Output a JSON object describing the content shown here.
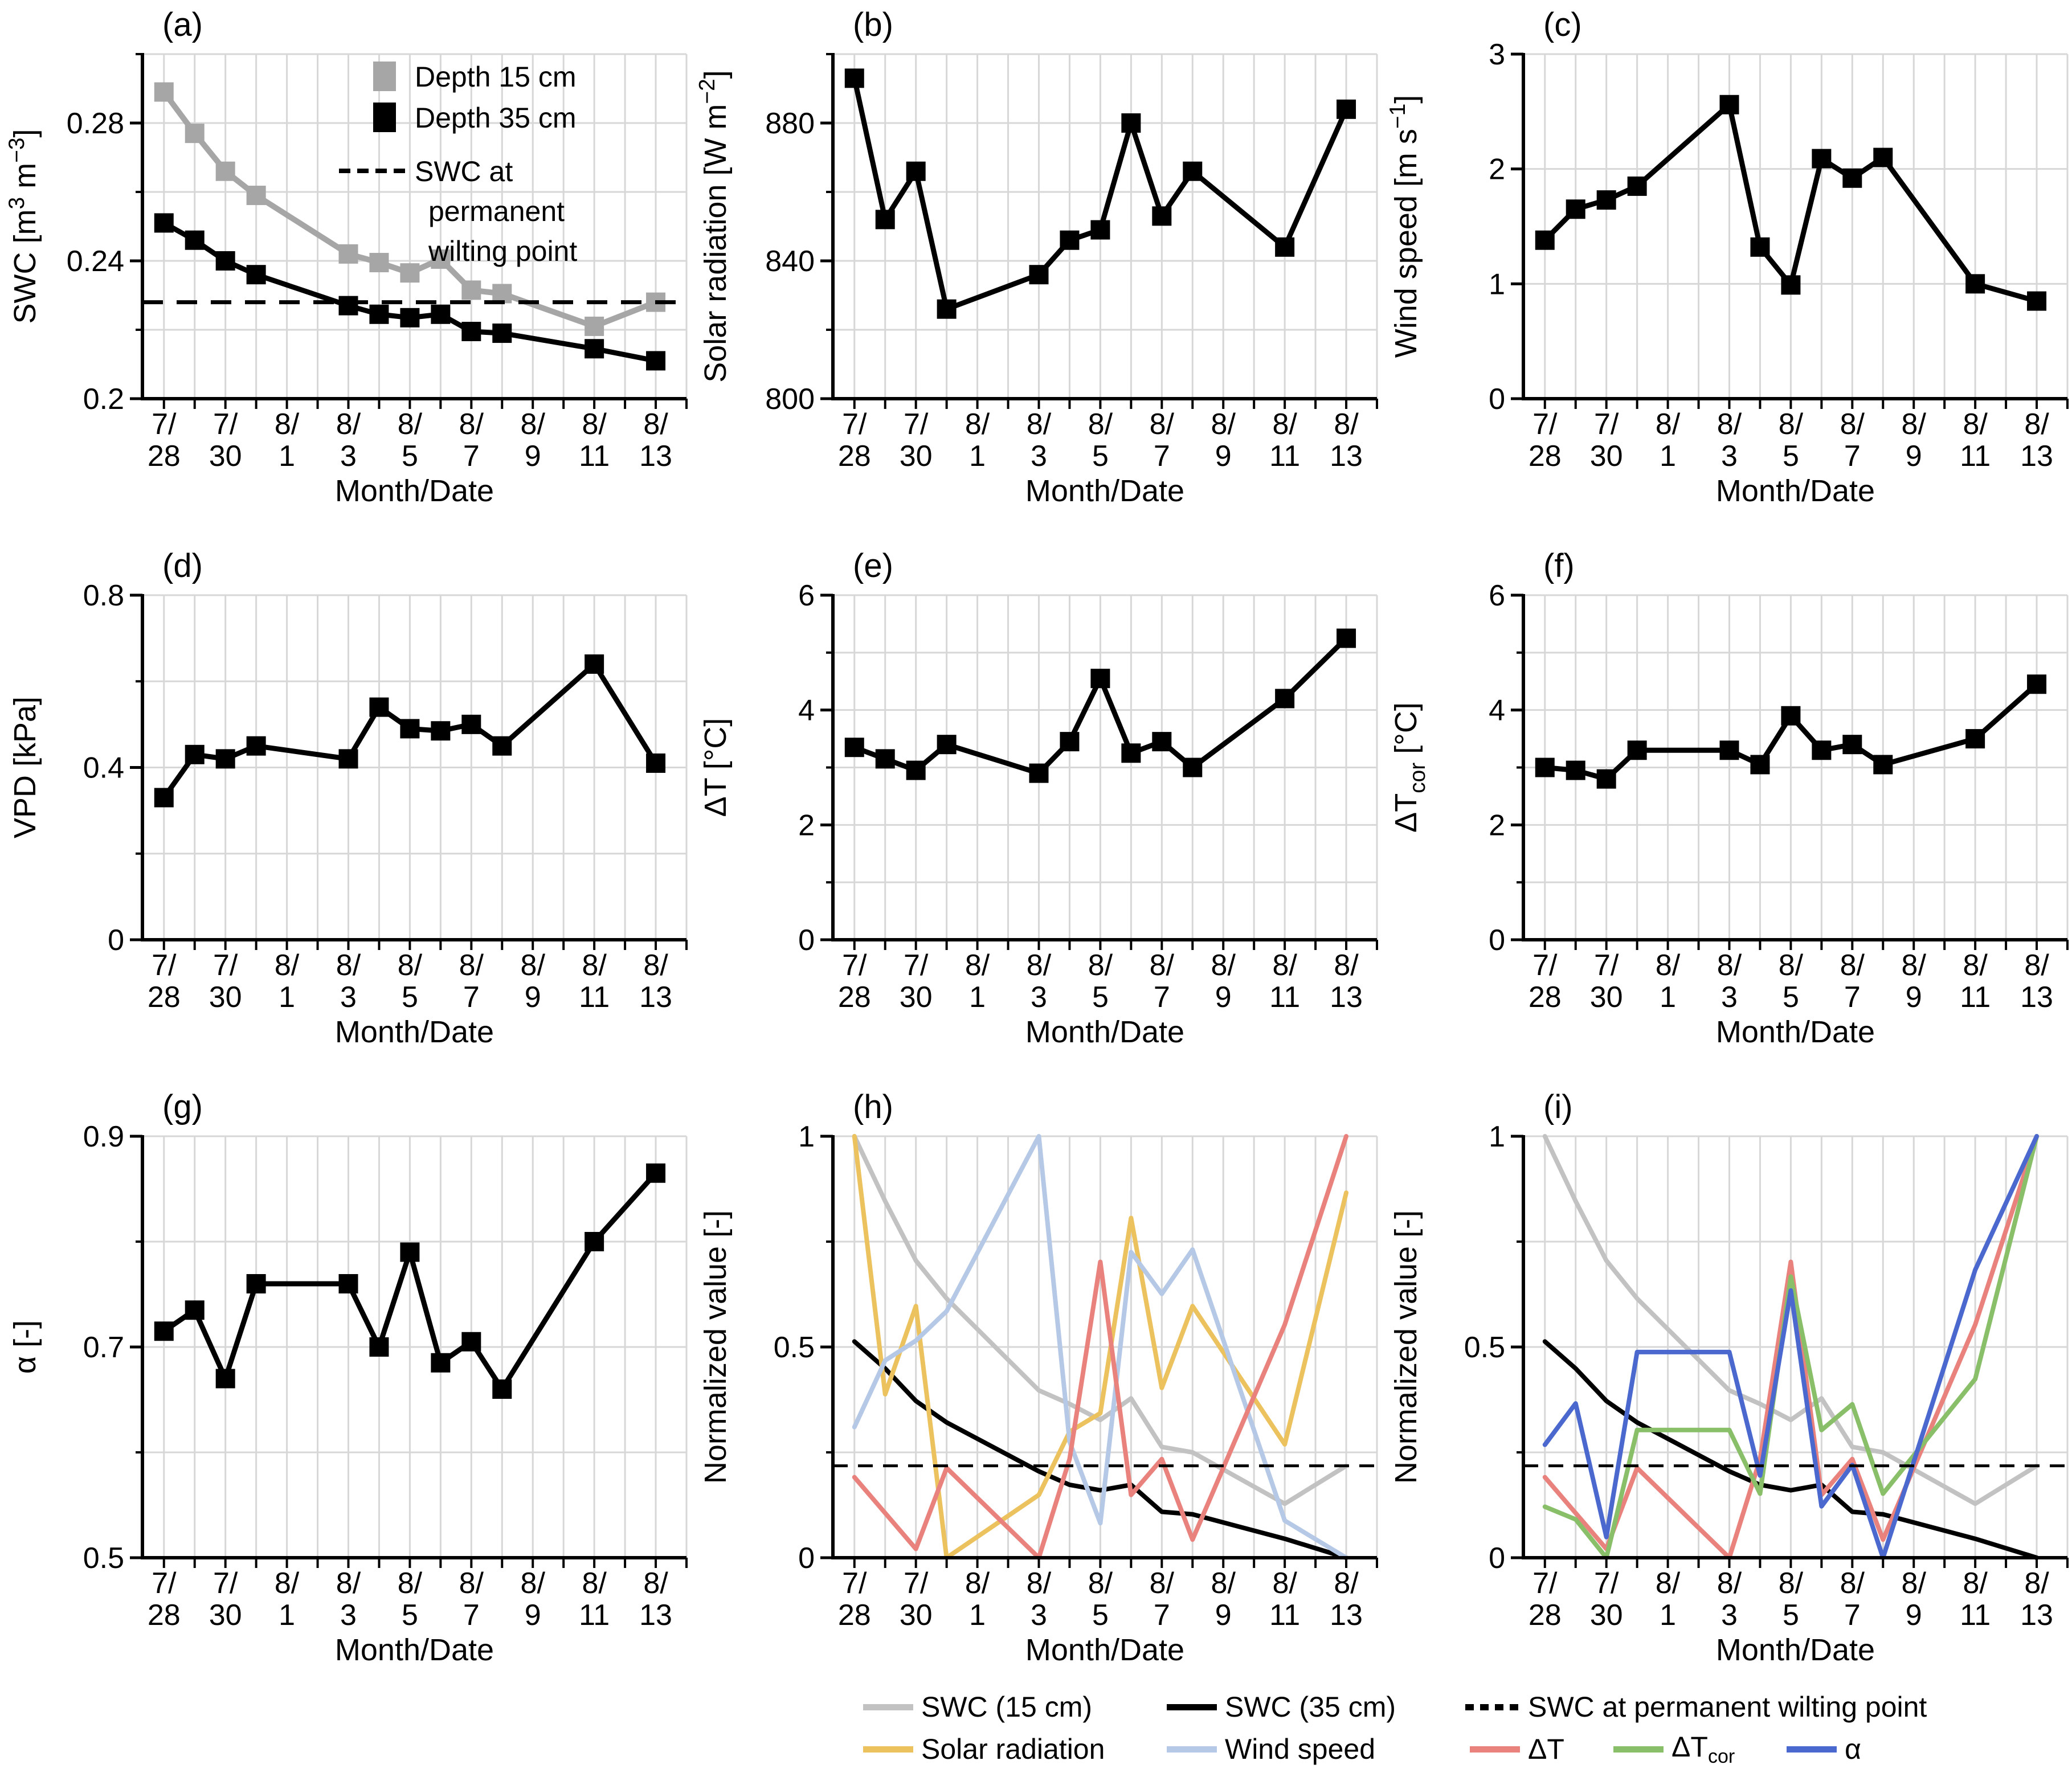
{
  "colors": {
    "swc15_marker": "#a6a6a6",
    "swc15_line": "#c2c2c2",
    "swc35": "#000000",
    "solar": "#ecc25e",
    "wind": "#b5c8e6",
    "dt": "#e9827d",
    "dtcor": "#8abf6a",
    "alpha": "#4a68ce",
    "grid": "#d7d7d7",
    "axis": "#000000"
  },
  "chart_data": {
    "type": "line",
    "x_title": "Month/Date",
    "dates": [
      "7/28",
      "7/29",
      "7/30",
      "7/31",
      "8/3",
      "8/4",
      "8/5",
      "8/6",
      "8/7",
      "8/8",
      "8/11",
      "8/13"
    ],
    "day_positions": [
      0,
      1,
      2,
      3,
      6,
      7,
      8,
      9,
      10,
      11,
      14,
      16
    ],
    "xtick_days": [
      0,
      2,
      4,
      6,
      8,
      10,
      12,
      14,
      16
    ],
    "xtick_top": [
      "7/",
      "7/",
      "8/",
      "8/",
      "8/",
      "8/",
      "8/",
      "8/",
      "8/"
    ],
    "xtick_bottom": [
      "28",
      "30",
      "1",
      "3",
      "5",
      "7",
      "9",
      "11",
      "13"
    ],
    "xlim": [
      -0.7,
      17
    ],
    "grid_day_step": 1,
    "panels": [
      {
        "letter": "(a)",
        "ylabel": [
          {
            "t": "SWC [m"
          },
          {
            "t": "3",
            "sup": 1
          },
          {
            "t": " m"
          },
          {
            "t": "−3",
            "sup": 1
          },
          {
            "t": "]"
          }
        ],
        "ylim": [
          0.2,
          0.3
        ],
        "yticks": [
          {
            "v": 0.2,
            "l": "0.2"
          },
          {
            "v": 0.24,
            "l": "0.24"
          },
          {
            "v": 0.28,
            "l": "0.28"
          }
        ],
        "ygrid": [
          0.22,
          0.24,
          0.26,
          0.28,
          0.3
        ],
        "hline": 0.228,
        "hline_style": "big",
        "has_legend": true,
        "series": [
          {
            "name": "Depth 15 cm",
            "color": "swc15_marker",
            "marker": true,
            "lw": 10,
            "values": [
              0.289,
              0.277,
              0.266,
              0.259,
              0.242,
              0.2395,
              0.2365,
              0.2405,
              0.2315,
              0.2305,
              0.221,
              0.228
            ]
          },
          {
            "name": "Depth 35 cm",
            "color": "swc35",
            "marker": true,
            "lw": 9,
            "values": [
              0.251,
              0.246,
              0.24,
              0.236,
              0.227,
              0.2245,
              0.2235,
              0.2245,
              0.2195,
              0.219,
              0.2145,
              0.211
            ]
          }
        ]
      },
      {
        "letter": "(b)",
        "ylabel": [
          {
            "t": "Solar radiation [W m"
          },
          {
            "t": "−2",
            "sup": 1
          },
          {
            "t": "]"
          }
        ],
        "ylim": [
          800,
          900
        ],
        "yticks": [
          {
            "v": 800,
            "l": "800"
          },
          {
            "v": 840,
            "l": "840"
          },
          {
            "v": 880,
            "l": "880"
          }
        ],
        "ygrid": [
          820,
          840,
          860,
          880,
          900
        ],
        "series": [
          {
            "name": "Solar radiation",
            "color": "swc35",
            "marker": true,
            "lw": 9,
            "values": [
              893,
              852,
              866,
              826,
              836,
              846,
              849,
              880,
              853,
              866,
              844,
              884
            ]
          }
        ]
      },
      {
        "letter": "(c)",
        "ylabel": [
          {
            "t": "Wind speed [m s"
          },
          {
            "t": "−1",
            "sup": 1
          },
          {
            "t": "]"
          }
        ],
        "ylim": [
          0,
          3
        ],
        "yticks": [
          {
            "v": 0,
            "l": "0"
          },
          {
            "v": 1,
            "l": "1"
          },
          {
            "v": 2,
            "l": "2"
          },
          {
            "v": 3,
            "l": "3"
          }
        ],
        "ygrid": [
          1,
          2,
          3
        ],
        "series": [
          {
            "name": "Wind speed",
            "color": "swc35",
            "marker": true,
            "lw": 9,
            "values": [
              1.38,
              1.65,
              1.73,
              1.85,
              2.56,
              1.32,
              0.99,
              2.09,
              1.92,
              2.1,
              1.0,
              0.85
            ]
          }
        ]
      },
      {
        "letter": "(d)",
        "ylabel": [
          {
            "t": "VPD [kPa]"
          }
        ],
        "ylim": [
          0,
          0.8
        ],
        "yticks": [
          {
            "v": 0,
            "l": "0"
          },
          {
            "v": 0.4,
            "l": "0.4"
          },
          {
            "v": 0.8,
            "l": "0.8"
          }
        ],
        "ygrid": [
          0.2,
          0.4,
          0.6,
          0.8
        ],
        "series": [
          {
            "name": "VPD",
            "color": "swc35",
            "marker": true,
            "lw": 9,
            "values": [
              0.33,
              0.43,
              0.42,
              0.45,
              0.42,
              0.54,
              0.49,
              0.485,
              0.5,
              0.45,
              0.64,
              0.41
            ]
          }
        ]
      },
      {
        "letter": "(e)",
        "ylabel": [
          {
            "t": "ΔT [°C]"
          }
        ],
        "ylim": [
          0,
          6
        ],
        "yticks": [
          {
            "v": 0,
            "l": "0"
          },
          {
            "v": 2,
            "l": "2"
          },
          {
            "v": 4,
            "l": "4"
          },
          {
            "v": 6,
            "l": "6"
          }
        ],
        "ygrid": [
          1,
          2,
          3,
          4,
          5,
          6
        ],
        "series": [
          {
            "name": "dT",
            "color": "swc35",
            "marker": true,
            "lw": 9,
            "values": [
              3.35,
              3.15,
              2.95,
              3.4,
              2.9,
              3.45,
              4.55,
              3.25,
              3.45,
              3.0,
              4.2,
              5.25
            ]
          }
        ]
      },
      {
        "letter": "(f)",
        "ylabel": [
          {
            "t": "ΔT"
          },
          {
            "t": "cor",
            "sub": 1
          },
          {
            "t": " [°C]"
          }
        ],
        "ylim": [
          0,
          6
        ],
        "yticks": [
          {
            "v": 0,
            "l": "0"
          },
          {
            "v": 2,
            "l": "2"
          },
          {
            "v": 4,
            "l": "4"
          },
          {
            "v": 6,
            "l": "6"
          }
        ],
        "ygrid": [
          1,
          2,
          3,
          4,
          5,
          6
        ],
        "series": [
          {
            "name": "dTcor",
            "color": "swc35",
            "marker": true,
            "lw": 9,
            "values": [
              3.0,
              2.95,
              2.8,
              3.3,
              3.3,
              3.05,
              3.9,
              3.3,
              3.4,
              3.05,
              3.5,
              4.45
            ]
          }
        ]
      },
      {
        "letter": "(g)",
        "ylabel": [
          {
            "t": "α [-]"
          }
        ],
        "ylim": [
          0.5,
          0.9
        ],
        "yticks": [
          {
            "v": 0.5,
            "l": "0.5"
          },
          {
            "v": 0.7,
            "l": "0.7"
          },
          {
            "v": 0.9,
            "l": "0.9"
          }
        ],
        "ygrid": [
          0.6,
          0.7,
          0.8,
          0.9
        ],
        "series": [
          {
            "name": "alpha",
            "color": "swc35",
            "marker": true,
            "lw": 9,
            "values": [
              0.715,
              0.735,
              0.67,
              0.76,
              0.76,
              0.7,
              0.79,
              0.685,
              0.705,
              0.66,
              0.8,
              0.865
            ]
          }
        ]
      },
      {
        "letter": "(h)",
        "ylabel": [
          {
            "t": "Normalized value [-]"
          }
        ],
        "ylim": [
          0,
          1
        ],
        "yticks": [
          {
            "v": 0,
            "l": "0"
          },
          {
            "v": 0.5,
            "l": "0.5"
          },
          {
            "v": 1,
            "l": "1"
          }
        ],
        "ygrid": [
          0.25,
          0.5,
          0.75,
          1
        ],
        "hline": 0.218,
        "hline_style": "small",
        "series": [
          {
            "name": "SWC (15 cm)",
            "color": "swc15_line",
            "lw": 8,
            "values": [
              1.0,
              0.846,
              0.705,
              0.615,
              0.397,
              0.365,
              0.327,
              0.378,
              0.263,
              0.25,
              0.128,
              0.218
            ]
          },
          {
            "name": "SWC (35 cm)",
            "color": "swc35",
            "lw": 8,
            "values": [
              0.513,
              0.449,
              0.372,
              0.321,
              0.205,
              0.173,
              0.16,
              0.173,
              0.109,
              0.103,
              0.045,
              0.0
            ]
          },
          {
            "name": "Solar radiation",
            "color": "solar",
            "lw": 8,
            "values": [
              1.0,
              0.388,
              0.597,
              0.0,
              0.149,
              0.299,
              0.343,
              0.806,
              0.403,
              0.597,
              0.269,
              0.866
            ]
          },
          {
            "name": "Wind speed",
            "color": "wind",
            "lw": 8,
            "values": [
              0.31,
              0.468,
              0.515,
              0.585,
              1.0,
              0.275,
              0.082,
              0.725,
              0.626,
              0.731,
              0.088,
              0.0
            ]
          },
          {
            "name": "dT",
            "color": "dt",
            "lw": 8,
            "values": [
              0.191,
              0.106,
              0.021,
              0.213,
              0.0,
              0.234,
              0.702,
              0.149,
              0.234,
              0.043,
              0.553,
              1.0
            ]
          }
        ]
      },
      {
        "letter": "(i)",
        "ylabel": [
          {
            "t": "Normalized value [-]"
          }
        ],
        "ylim": [
          0,
          1
        ],
        "yticks": [
          {
            "v": 0,
            "l": "0"
          },
          {
            "v": 0.5,
            "l": "0.5"
          },
          {
            "v": 1,
            "l": "1"
          }
        ],
        "ygrid": [
          0.25,
          0.5,
          0.75,
          1
        ],
        "hline": 0.218,
        "hline_style": "small",
        "series": [
          {
            "name": "SWC (15 cm)",
            "color": "swc15_line",
            "lw": 8,
            "values": [
              1.0,
              0.846,
              0.705,
              0.615,
              0.397,
              0.365,
              0.327,
              0.378,
              0.263,
              0.25,
              0.128,
              0.218
            ]
          },
          {
            "name": "SWC (35 cm)",
            "color": "swc35",
            "lw": 8,
            "values": [
              0.513,
              0.449,
              0.372,
              0.321,
              0.205,
              0.173,
              0.16,
              0.173,
              0.109,
              0.103,
              0.045,
              0.0
            ]
          },
          {
            "name": "dT",
            "color": "dt",
            "lw": 8,
            "values": [
              0.191,
              0.106,
              0.021,
              0.213,
              0.0,
              0.234,
              0.702,
              0.149,
              0.234,
              0.043,
              0.553,
              1.0
            ]
          },
          {
            "name": "dTcor",
            "color": "dtcor",
            "lw": 8,
            "values": [
              0.121,
              0.091,
              0.0,
              0.303,
              0.303,
              0.152,
              0.667,
              0.303,
              0.364,
              0.152,
              0.424,
              1.0
            ]
          },
          {
            "name": "alpha",
            "color": "alpha",
            "lw": 8,
            "values": [
              0.268,
              0.366,
              0.049,
              0.488,
              0.488,
              0.195,
              0.634,
              0.122,
              0.22,
              0.0,
              0.683,
              1.0
            ]
          }
        ]
      }
    ]
  },
  "panel_a_legend": {
    "item1_label": "Depth 15 cm",
    "item2_label": "Depth 35 cm",
    "item3_lines": [
      "SWC at",
      "permanent",
      "wilting point"
    ]
  },
  "bottom_legend": {
    "row1": [
      {
        "key": "swc15_line",
        "type": "line",
        "label": "SWC (15 cm)"
      },
      {
        "key": "swc35",
        "type": "line",
        "label": "SWC (35 cm)"
      },
      {
        "key": "swc35",
        "type": "dash",
        "label": "SWC at permanent wilting point"
      }
    ],
    "row2": [
      {
        "key": "solar",
        "type": "line",
        "segments": [
          {
            "t": "Solar radiation"
          }
        ]
      },
      {
        "key": "wind",
        "type": "line",
        "segments": [
          {
            "t": "Wind speed"
          }
        ]
      },
      {
        "key": "dt",
        "type": "line",
        "segments": [
          {
            "t": "ΔT"
          }
        ]
      },
      {
        "key": "dtcor",
        "type": "line",
        "segments": [
          {
            "t": "ΔT"
          },
          {
            "t": "cor",
            "sub": 1
          }
        ]
      },
      {
        "key": "alpha",
        "type": "line",
        "segments": [
          {
            "t": "α"
          }
        ]
      }
    ]
  }
}
